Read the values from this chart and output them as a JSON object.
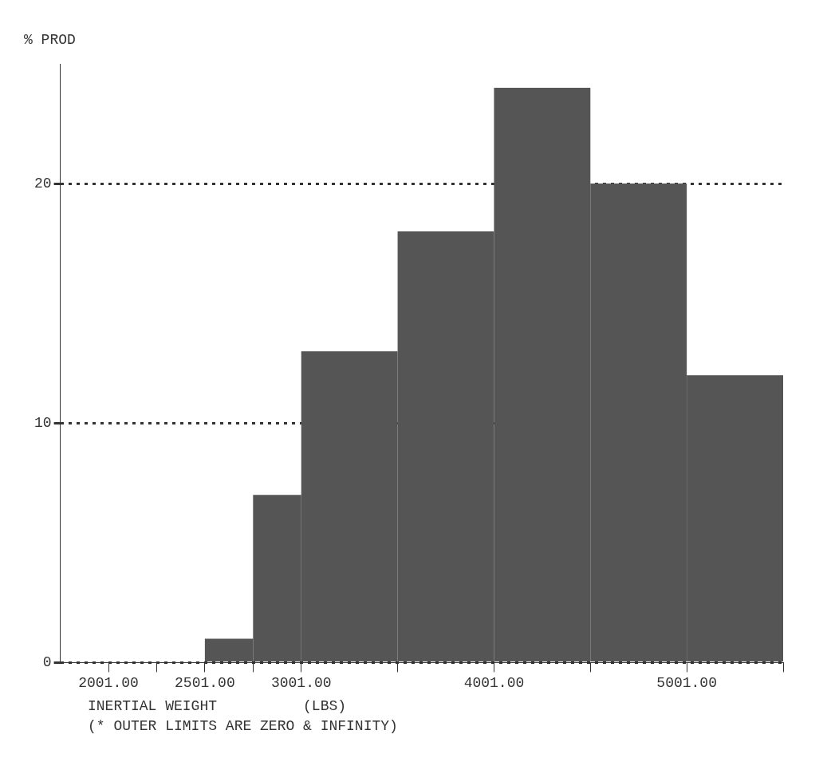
{
  "chart_data": {
    "type": "histogram",
    "ylabel": "% PROD",
    "xlabel": "INERTIAL WEIGHT          (LBS)",
    "annotations": [
      "(* OUTER LIMITS ARE ZERO & INFINITY)"
    ],
    "bins": [
      2501,
      2751,
      3001,
      3501,
      4001,
      4501,
      5001,
      5501
    ],
    "values": [
      1,
      7,
      13,
      18,
      24,
      20,
      12
    ],
    "color": "#555555",
    "xlim": [
      1751,
      5501
    ],
    "xticks": [
      {
        "value": 2001,
        "label": "2001.00"
      },
      {
        "value": 2251,
        "label": null
      },
      {
        "value": 2501,
        "label": "2501.00"
      },
      {
        "value": 2751,
        "label": null
      },
      {
        "value": 3001,
        "label": "3001.00"
      },
      {
        "value": 3501,
        "label": null
      },
      {
        "value": 4001,
        "label": "4001.00"
      },
      {
        "value": 4501,
        "label": null
      },
      {
        "value": 5001,
        "label": "5001.00"
      },
      {
        "value": 5501,
        "label": null
      }
    ],
    "ylim": [
      0,
      25
    ],
    "yticks": [
      0,
      10,
      20
    ],
    "grid": "y",
    "legend": false
  }
}
